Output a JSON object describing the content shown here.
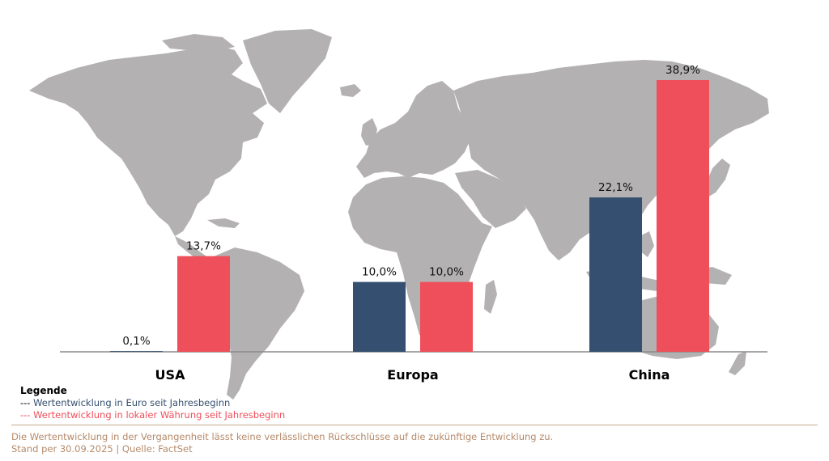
{
  "chart_data": {
    "type": "bar",
    "categories": [
      "USA",
      "Europa",
      "China"
    ],
    "series": [
      {
        "name": "Wertentwicklung in Euro seit Jahresbeginn",
        "color": "#354f70",
        "values": [
          0.1,
          10.0,
          22.1
        ],
        "labels": [
          "0,1%",
          "10,0%",
          "22,1%"
        ]
      },
      {
        "name": "Wertentwicklung in lokaler Währung seit Jahresbeginn",
        "color": "#ee4f5a",
        "values": [
          13.7,
          10.0,
          38.9
        ],
        "labels": [
          "13,7%",
          "10,0%",
          "38,9%"
        ]
      }
    ],
    "ylim": [
      0,
      40
    ],
    "baseline_color": "#8c8c8c",
    "map_color": "#b3b1b1"
  },
  "legend": {
    "title": "Legende",
    "dash": "---",
    "items": [
      {
        "label": "Wertentwicklung in Euro seit Jahresbeginn",
        "color": "#354f70"
      },
      {
        "label": "Wertentwicklung in lokaler Währung seit Jahresbeginn",
        "color": "#ee4f5a"
      }
    ]
  },
  "footer": {
    "disclaimer": "Die Wertentwicklung in der Vergangenheit lässt keine verlässlichen Rückschlüsse auf die zukünftige Entwicklung zu.",
    "source": "Stand per 30.09.2025 | Quelle: FactSet",
    "color": "#b58a6a"
  }
}
